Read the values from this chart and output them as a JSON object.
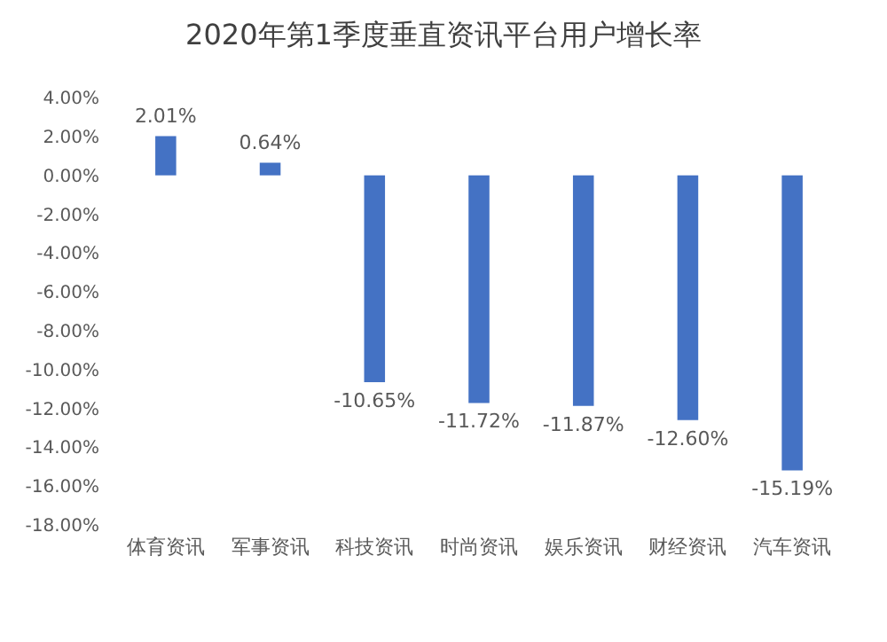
{
  "chart_data": {
    "type": "bar",
    "title": "2020年第1季度垂直资讯平台用户增长率",
    "categories": [
      "体育资讯",
      "军事资讯",
      "科技资讯",
      "时尚资讯",
      "娱乐资讯",
      "财经资讯",
      "汽车资讯"
    ],
    "values": [
      2.01,
      0.64,
      -10.65,
      -11.72,
      -11.87,
      -12.6,
      -15.19
    ],
    "value_labels": [
      "2.01%",
      "0.64%",
      "-10.65%",
      "-11.72%",
      "-11.87%",
      "-12.60%",
      "-15.19%"
    ],
    "color": "#4472c4",
    "ylim": [
      -18,
      4
    ],
    "yticks": [
      {
        "value": 4,
        "label": "4.00%"
      },
      {
        "value": 2,
        "label": "2.00%"
      },
      {
        "value": 0,
        "label": "0.00%"
      },
      {
        "value": -2,
        "label": "-2.00%"
      },
      {
        "value": -4,
        "label": "-4.00%"
      },
      {
        "value": -6,
        "label": "-6.00%"
      },
      {
        "value": -8,
        "label": "-8.00%"
      },
      {
        "value": -10,
        "label": "-10.00%"
      },
      {
        "value": -12,
        "label": "-12.00%"
      },
      {
        "value": -14,
        "label": "-14.00%"
      },
      {
        "value": -16,
        "label": "-16.00%"
      },
      {
        "value": -18,
        "label": "-18.00%"
      }
    ],
    "grid": false,
    "legend": false
  }
}
